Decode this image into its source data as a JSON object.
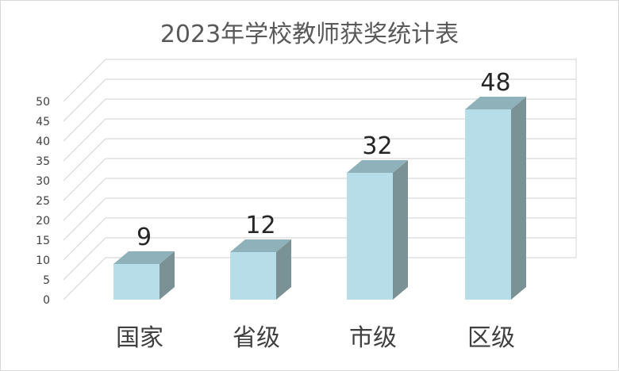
{
  "chart_data": {
    "type": "bar",
    "title": "2023年学校教师获奖统计表",
    "categories": [
      "国家",
      "省级",
      "市级",
      "区级"
    ],
    "values": [
      9,
      12,
      32,
      48
    ],
    "ylim": [
      0,
      50
    ],
    "yticks": [
      0,
      5,
      10,
      15,
      20,
      25,
      30,
      35,
      40,
      45,
      50
    ],
    "grid": true,
    "style": "3d-column",
    "data_labels": true
  },
  "colors": {
    "bar_front": "#b7dde8",
    "bar_side": "#7a9195",
    "bar_top": "#8fb1b9",
    "gridline": "#d9d9d9",
    "title": "#595959",
    "text": "#404040"
  }
}
